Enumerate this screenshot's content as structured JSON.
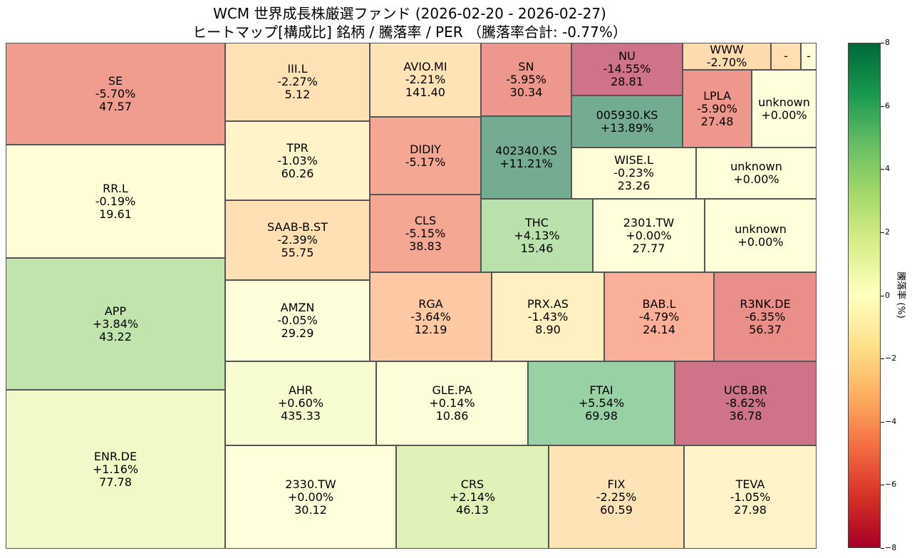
{
  "chart_data": {
    "type": "treemap",
    "title": "WCM 世界成長株厳選ファンド (2026-02-20 - 2026-02-27)",
    "subtitle": "ヒートマップ[構成比] 銘柄 / 騰落率 / PER （騰落率合計: -0.77%）",
    "colorbar": {
      "label": "騰落率 (%)",
      "range": [
        -8,
        8
      ],
      "ticks": [
        "8",
        "6",
        "4",
        "2",
        "0",
        "−2",
        "−4",
        "−6",
        "−8"
      ],
      "colormap": [
        "#a50026",
        "#d73027",
        "#f46d43",
        "#fdae61",
        "#fee08b",
        "#ffffbf",
        "#d9ef8b",
        "#a6d96a",
        "#66bd63",
        "#1a9850",
        "#006837"
      ]
    },
    "tiles": [
      {
        "name": "SE",
        "change": -5.7,
        "change_label": "-5.70%",
        "per": "47.57"
      },
      {
        "name": "RR.L",
        "change": -0.19,
        "change_label": "-0.19%",
        "per": "19.61"
      },
      {
        "name": "APP",
        "change": 3.84,
        "change_label": "+3.84%",
        "per": "43.22"
      },
      {
        "name": "ENR.DE",
        "change": 1.16,
        "change_label": "+1.16%",
        "per": "77.78"
      },
      {
        "name": "III.L",
        "change": -2.27,
        "change_label": "-2.27%",
        "per": "5.12"
      },
      {
        "name": "TPR",
        "change": -1.03,
        "change_label": "-1.03%",
        "per": "60.26"
      },
      {
        "name": "SAAB-B.ST",
        "change": -2.39,
        "change_label": "-2.39%",
        "per": "55.75"
      },
      {
        "name": "AMZN",
        "change": -0.05,
        "change_label": "-0.05%",
        "per": "29.29"
      },
      {
        "name": "AVIO.MI",
        "change": -2.21,
        "change_label": "-2.21%",
        "per": "141.40"
      },
      {
        "name": "DIDIY",
        "change": -5.17,
        "change_label": "-5.17%",
        "per": ""
      },
      {
        "name": "CLS",
        "change": -5.15,
        "change_label": "-5.15%",
        "per": "38.83"
      },
      {
        "name": "SN",
        "change": -5.95,
        "change_label": "-5.95%",
        "per": "30.34"
      },
      {
        "name": "402340.KS",
        "change": 11.21,
        "change_label": "+11.21%",
        "per": ""
      },
      {
        "name": "NU",
        "change": -14.55,
        "change_label": "-14.55%",
        "per": "28.81"
      },
      {
        "name": "005930.KS",
        "change": 13.89,
        "change_label": "+13.89%",
        "per": ""
      },
      {
        "name": "WWW",
        "change": -2.7,
        "change_label": "-2.70%",
        "per": ""
      },
      {
        "name": "-",
        "change": -2.5,
        "change_label": "",
        "per": ""
      },
      {
        "name": "-",
        "change": 0,
        "change_label": "",
        "per": ""
      },
      {
        "name": "LPLA",
        "change": -5.9,
        "change_label": "-5.90%",
        "per": "27.48"
      },
      {
        "name": "unknown",
        "change": 0,
        "change_label": "+0.00%",
        "per": ""
      },
      {
        "name": "WISE.L",
        "change": -0.23,
        "change_label": "-0.23%",
        "per": "23.26"
      },
      {
        "name": "unknown",
        "change": 0,
        "change_label": "+0.00%",
        "per": ""
      },
      {
        "name": "THC",
        "change": 4.13,
        "change_label": "+4.13%",
        "per": "15.46"
      },
      {
        "name": "2301.TW",
        "change": 0,
        "change_label": "+0.00%",
        "per": "27.77"
      },
      {
        "name": "unknown",
        "change": 0,
        "change_label": "+0.00%",
        "per": ""
      },
      {
        "name": "RGA",
        "change": -3.64,
        "change_label": "-3.64%",
        "per": "12.19"
      },
      {
        "name": "PRX.AS",
        "change": -1.43,
        "change_label": "-1.43%",
        "per": "8.90"
      },
      {
        "name": "BAB.L",
        "change": -4.79,
        "change_label": "-4.79%",
        "per": "24.14"
      },
      {
        "name": "R3NK.DE",
        "change": -6.35,
        "change_label": "-6.35%",
        "per": "56.37"
      },
      {
        "name": "AHR",
        "change": 0.6,
        "change_label": "+0.60%",
        "per": "435.33"
      },
      {
        "name": "GLE.PA",
        "change": 0.14,
        "change_label": "+0.14%",
        "per": "10.86"
      },
      {
        "name": "FTAI",
        "change": 5.54,
        "change_label": "+5.54%",
        "per": "69.98"
      },
      {
        "name": "UCB.BR",
        "change": -8.62,
        "change_label": "-8.62%",
        "per": "36.78"
      },
      {
        "name": "2330.TW",
        "change": 0,
        "change_label": "+0.00%",
        "per": "30.12"
      },
      {
        "name": "CRS",
        "change": 2.14,
        "change_label": "+2.14%",
        "per": "46.13"
      },
      {
        "name": "FIX",
        "change": -2.25,
        "change_label": "-2.25%",
        "per": "60.59"
      },
      {
        "name": "TEVA",
        "change": -1.05,
        "change_label": "-1.05%",
        "per": "27.98"
      }
    ]
  }
}
